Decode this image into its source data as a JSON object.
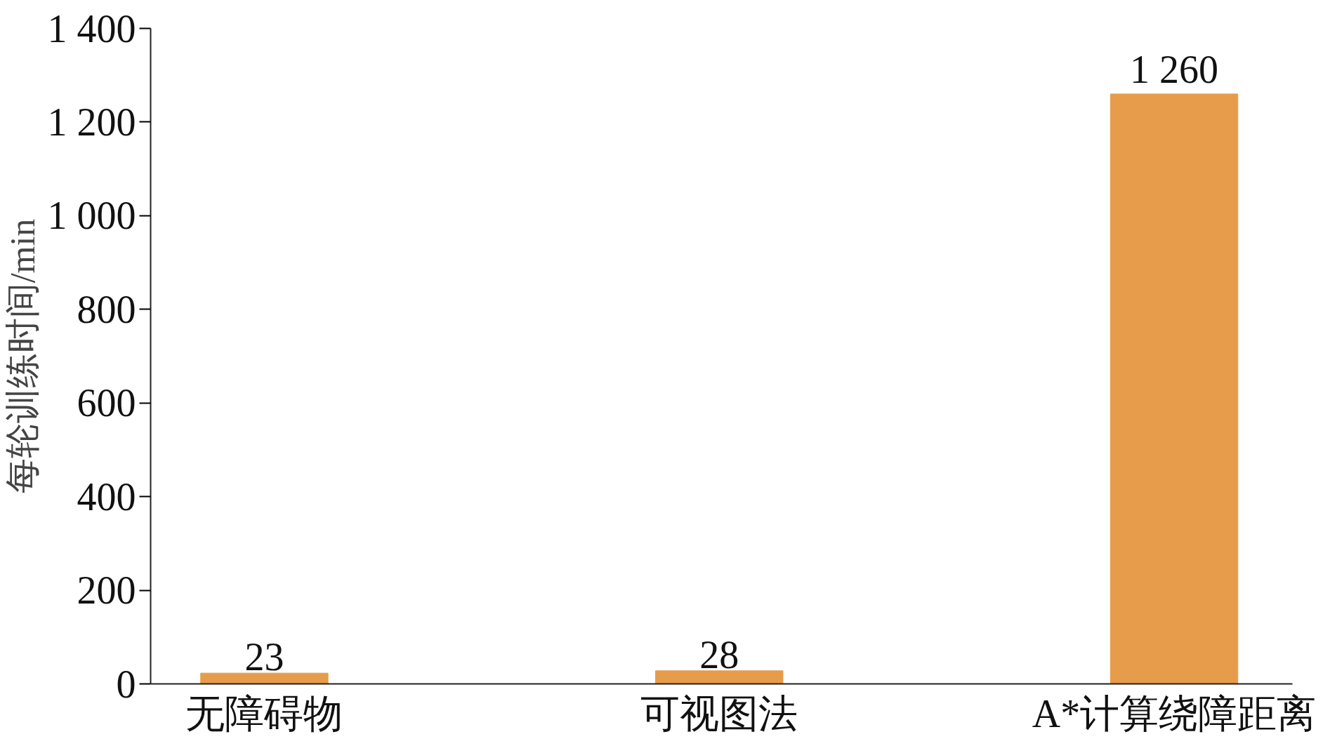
{
  "chart_data": {
    "type": "bar",
    "ylabel": "每轮训练时间/min",
    "categories": [
      "无障碍物",
      "可视图法",
      "A*计算绕障距离"
    ],
    "values": [
      23,
      28,
      1260
    ],
    "value_labels": [
      "23",
      "28",
      "1 260"
    ],
    "color": "#e69c4a",
    "ylim": [
      0,
      1400
    ],
    "yticks": [
      0,
      200,
      400,
      600,
      800,
      {
        "value": 1000,
        "label": "1 000"
      },
      {
        "value": 1200,
        "label": "1 200"
      },
      {
        "value": 1400,
        "label": "1 400"
      }
    ],
    "grid": false
  }
}
